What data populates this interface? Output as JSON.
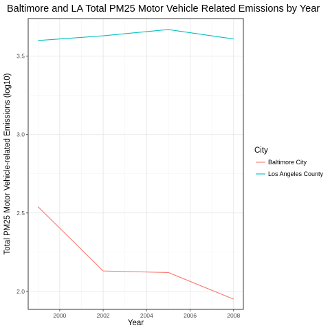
{
  "chart_data": {
    "type": "line",
    "title": "Baltimore and LA Total PM25 Motor Vehicle Related Emissions by Year",
    "xlabel": "Year",
    "ylabel": "Total PM25 Motor Vehicle-related Emissions (log10)",
    "x": [
      1999,
      2002,
      2005,
      2008
    ],
    "xlim": [
      1998.55,
      2008.45
    ],
    "ylim": [
      1.885,
      3.74
    ],
    "x_ticks": [
      2000,
      2002,
      2004,
      2006,
      2008
    ],
    "y_ticks": [
      2.0,
      2.5,
      3.0,
      3.5
    ],
    "x_tick_labels": [
      "2000",
      "2002",
      "2004",
      "2006",
      "2008"
    ],
    "y_tick_labels": [
      "2.0",
      "2.5",
      "3.0",
      "3.5"
    ],
    "grid": true,
    "legend": {
      "title": "City",
      "position": "right"
    },
    "series": [
      {
        "name": "Baltimore City",
        "color": "#F8766D",
        "values": [
          2.54,
          2.13,
          2.12,
          1.95
        ]
      },
      {
        "name": "Los Angeles County",
        "color": "#00BFC4",
        "values": [
          3.6,
          3.63,
          3.67,
          3.61
        ]
      }
    ]
  }
}
